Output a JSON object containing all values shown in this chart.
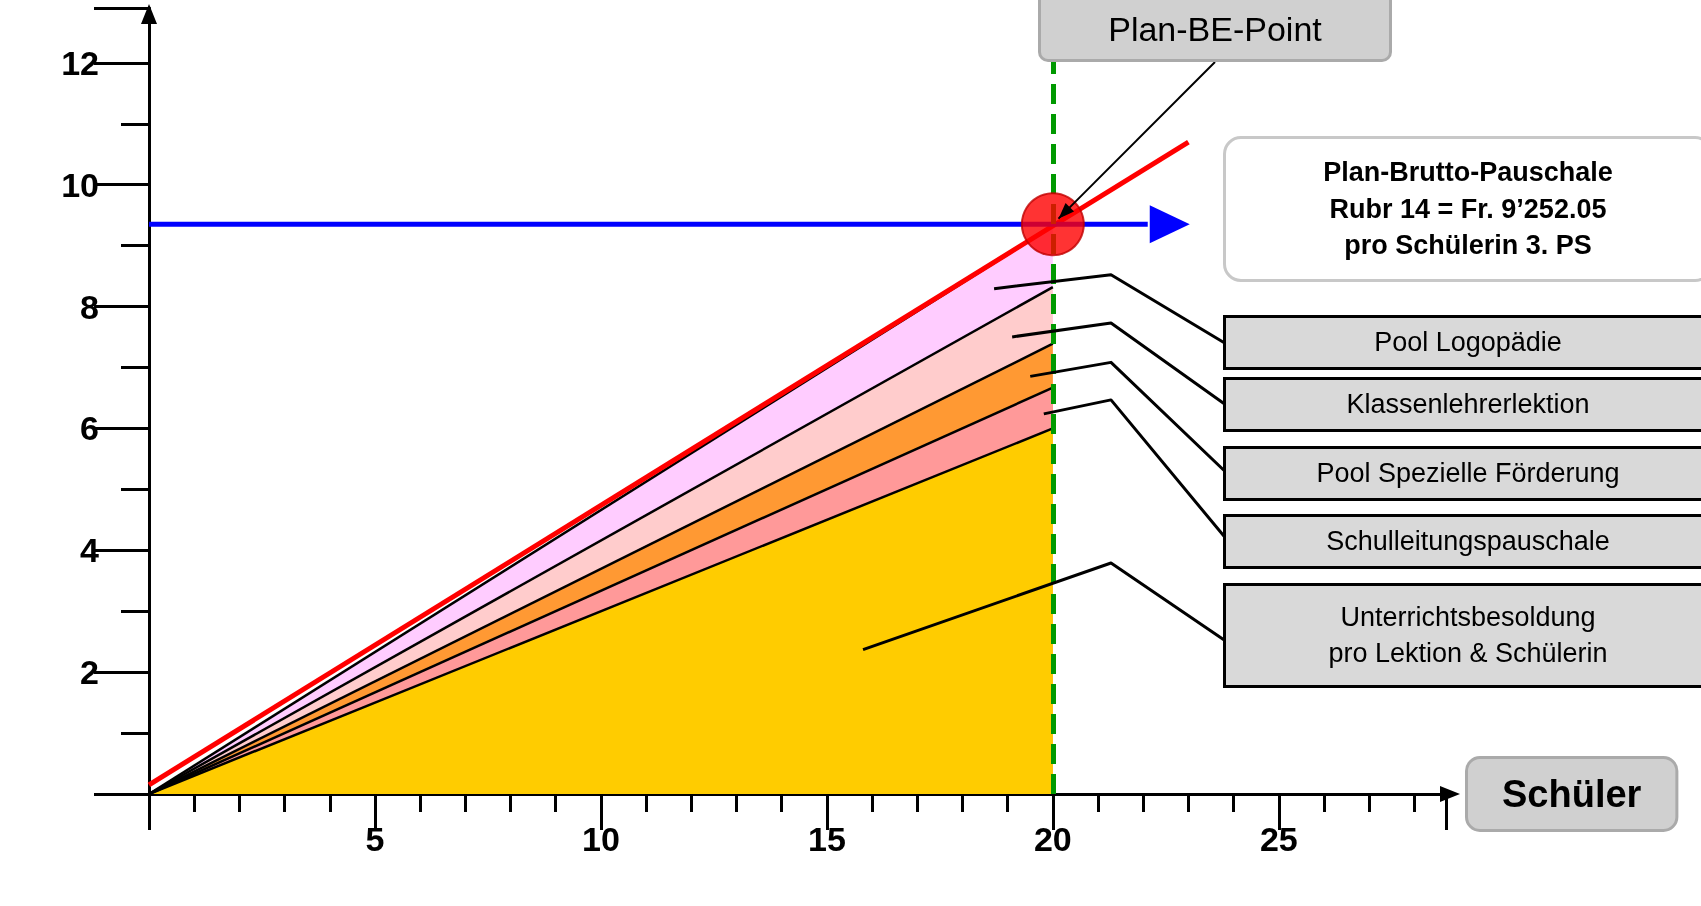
{
  "chart_data": {
    "type": "area",
    "xlabel": "Schüler",
    "stacked": true,
    "grid": false,
    "xlim": [
      0,
      28.7
    ],
    "xticks": [
      5,
      10,
      15,
      20,
      25
    ],
    "ylim": [
      0,
      12.9
    ],
    "yticks": [
      2,
      4,
      6,
      8,
      10,
      12
    ],
    "series": [
      {
        "color": "#ffcc00",
        "x": [
          0,
          20
        ],
        "values": [
          0,
          6.0
        ]
      },
      {
        "color": "#ff9999",
        "x": [
          0,
          20
        ],
        "values": [
          0,
          0.67
        ]
      },
      {
        "color": "#ff9933",
        "x": [
          0,
          20
        ],
        "values": [
          0,
          0.72
        ]
      },
      {
        "color": "#ffcccc",
        "x": [
          0,
          20
        ],
        "values": [
          0,
          0.93
        ]
      },
      {
        "color": "#ffccff",
        "x": [
          0,
          20
        ],
        "values": [
          0,
          1.0
        ]
      },
      {
        "type": "line",
        "color": "#ff0000",
        "x": [
          0,
          23
        ],
        "values": [
          0.15,
          10.7
        ]
      },
      {
        "type": "line",
        "color": "#0000ff",
        "x": [
          0,
          22.1
        ],
        "values": [
          9.35,
          9.35
        ]
      },
      {
        "type": "scatter",
        "color": "#ff0000",
        "marker": "circle",
        "x": [
          20
        ],
        "values": [
          9.35
        ]
      }
    ],
    "ref_lines": [
      {
        "axis": "x",
        "value": 20,
        "color": "#009900",
        "line_style": "dashed"
      }
    ],
    "annotations": [
      {
        "text": "Plan-BE-Point",
        "x": 20,
        "y": 9.35
      },
      "Plan-Brutto-Pauschale\nRubr 14 = Fr. 9’252.05\npro Schülerin 3. PS",
      "Pool Logopädie",
      "Klassenlehrerlektion",
      "Pool Spezielle Förderung",
      "Schulleitungspauschale",
      "Unterrichtsbesoldung\npro Lektion & Schülerin"
    ]
  }
}
